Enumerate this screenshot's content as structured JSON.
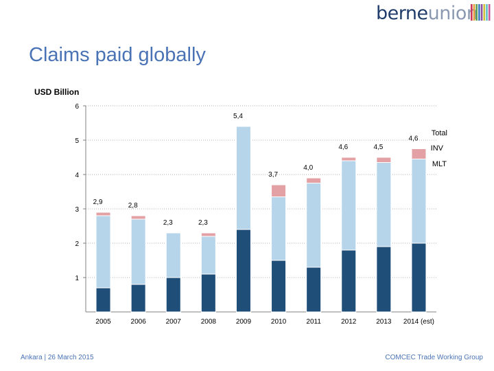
{
  "header": {
    "logo_text_a": "berne",
    "logo_text_b": "union",
    "stripe_colors": [
      "#c9375a",
      "#e6a03c",
      "#5b9f56",
      "#3c7cc0",
      "#8a4f9e",
      "#cfc23a",
      "#5dbfc6",
      "#c95a9a"
    ]
  },
  "title": "Claims paid globally",
  "unit_label": "USD Billion",
  "footer": {
    "left": "Ankara | 26 March 2015",
    "right": "COMCEC Trade Working Group"
  },
  "colors": {
    "st": "#1f4e79",
    "mlt": "#b7d5ea",
    "inv": "#e3a1a6",
    "grid": "#b0b0b0",
    "axis": "#808080"
  },
  "chart_data": {
    "type": "bar",
    "stacked": true,
    "categories": [
      "2005",
      "2006",
      "2007",
      "2008",
      "2009",
      "2010",
      "2011",
      "2012",
      "2013",
      "2014 (est)"
    ],
    "ylim": [
      0,
      6
    ],
    "yticks": [
      "1",
      "2",
      "3",
      "4",
      "5",
      "6"
    ],
    "grid": true,
    "series": [
      {
        "key": "st",
        "values": [
          0.7,
          0.8,
          1.0,
          1.1,
          2.4,
          1.5,
          1.3,
          1.8,
          1.9,
          2.0
        ]
      },
      {
        "key": "mlt",
        "name": "MLT",
        "values": [
          2.1,
          1.9,
          1.3,
          1.1,
          3.0,
          1.85,
          2.45,
          2.6,
          2.45,
          2.45
        ]
      },
      {
        "key": "inv",
        "name": "INV",
        "values": [
          0.1,
          0.1,
          0.0,
          0.1,
          0.0,
          0.35,
          0.15,
          0.1,
          0.15,
          0.3
        ]
      }
    ],
    "totals": [
      "2,9",
      "2,8",
      "2,3",
      "2,3",
      "5,4",
      "3,7",
      "4,0",
      "4,6",
      "4,5",
      "4,6"
    ],
    "legend": {
      "total": "Total",
      "inv": "INV",
      "mlt": "MLT"
    }
  }
}
